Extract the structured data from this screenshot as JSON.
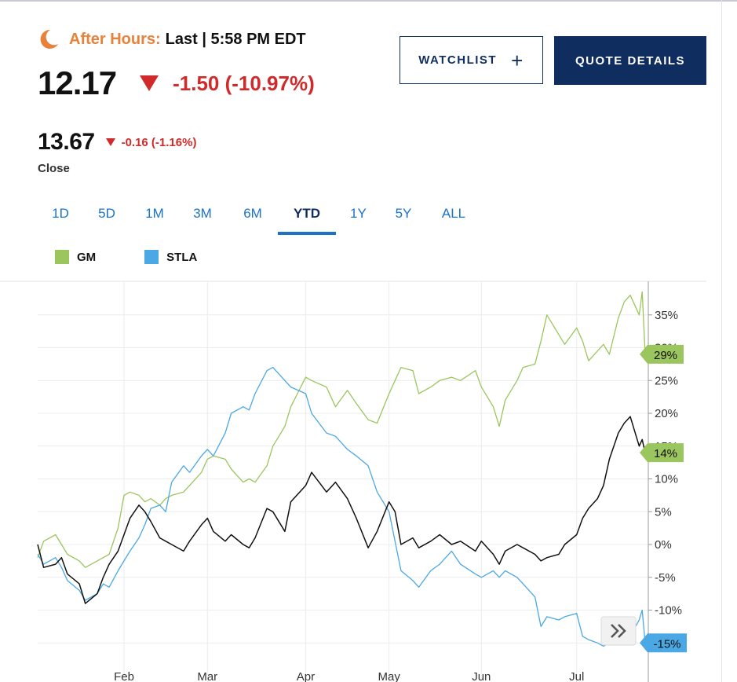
{
  "header": {
    "after_hours_label": "After Hours:",
    "after_hours_time": "Last | 5:58 PM EDT",
    "last_price": "12.17",
    "last_change": "-1.50 (-10.97%)",
    "close_price": "13.67",
    "close_change": "-0.16 (-1.16%)",
    "close_label": "Close"
  },
  "buttons": {
    "watchlist": "WATCHLIST",
    "quote_details": "QUOTE DETAILS",
    "scroll_icon": "double-chevron-right-icon"
  },
  "ranges": {
    "items": [
      "1D",
      "5D",
      "1M",
      "3M",
      "6M",
      "YTD",
      "1Y",
      "5Y",
      "ALL"
    ],
    "selected": "YTD"
  },
  "legend": {
    "items": [
      {
        "name": "GM",
        "color": "#9bc55d"
      },
      {
        "name": "STLA",
        "color": "#4aa8e4"
      }
    ]
  },
  "chart_data": {
    "type": "line",
    "x_tick_labels": [
      "Feb",
      "Mar",
      "Apr",
      "May",
      "Jun",
      "Jul"
    ],
    "y_tick_labels": [
      "-15%",
      "-10%",
      "-5%",
      "0%",
      "5%",
      "10%",
      "15%",
      "20%",
      "25%",
      "30%",
      "35%"
    ],
    "y_ticks": [
      -15,
      -10,
      -5,
      0,
      5,
      10,
      15,
      20,
      25,
      30,
      35
    ],
    "ylim": [
      -16,
      40
    ],
    "x_range": [
      "2023-01-03",
      "2023-07-21"
    ],
    "grid": true,
    "y_axis_side": "right",
    "series": [
      {
        "name": "GM",
        "color": "#9bc55d",
        "points": [
          [
            "2023-01-03",
            -2.0
          ],
          [
            "2023-01-05",
            0.5
          ],
          [
            "2023-01-09",
            1.5
          ],
          [
            "2023-01-11",
            0.0
          ],
          [
            "2023-01-13",
            -1.5
          ],
          [
            "2023-01-17",
            -2.5
          ],
          [
            "2023-01-19",
            -3.5
          ],
          [
            "2023-01-23",
            -2.5
          ],
          [
            "2023-01-25",
            -2.0
          ],
          [
            "2023-01-27",
            -1.5
          ],
          [
            "2023-01-30",
            2.5
          ],
          [
            "2023-02-01",
            7.5
          ],
          [
            "2023-02-03",
            8.0
          ],
          [
            "2023-02-06",
            7.5
          ],
          [
            "2023-02-08",
            6.5
          ],
          [
            "2023-02-10",
            7.0
          ],
          [
            "2023-02-13",
            6.0
          ],
          [
            "2023-02-15",
            7.0
          ],
          [
            "2023-02-17",
            7.5
          ],
          [
            "2023-02-21",
            8.0
          ],
          [
            "2023-02-23",
            9.0
          ],
          [
            "2023-02-27",
            11.0
          ],
          [
            "2023-03-01",
            13.0
          ],
          [
            "2023-03-03",
            13.5
          ],
          [
            "2023-03-07",
            13.0
          ],
          [
            "2023-03-09",
            11.5
          ],
          [
            "2023-03-13",
            9.5
          ],
          [
            "2023-03-15",
            10.0
          ],
          [
            "2023-03-17",
            9.5
          ],
          [
            "2023-03-21",
            12.0
          ],
          [
            "2023-03-23",
            15.0
          ],
          [
            "2023-03-27",
            18.0
          ],
          [
            "2023-03-29",
            21.0
          ],
          [
            "2023-04-03",
            25.5
          ],
          [
            "2023-04-05",
            25.0
          ],
          [
            "2023-04-10",
            24.0
          ],
          [
            "2023-04-13",
            21.0
          ],
          [
            "2023-04-17",
            23.5
          ],
          [
            "2023-04-20",
            21.5
          ],
          [
            "2023-04-24",
            19.0
          ],
          [
            "2023-04-27",
            18.5
          ],
          [
            "2023-05-01",
            23.0
          ],
          [
            "2023-05-03",
            25.0
          ],
          [
            "2023-05-05",
            27.0
          ],
          [
            "2023-05-09",
            26.5
          ],
          [
            "2023-05-11",
            23.0
          ],
          [
            "2023-05-15",
            24.0
          ],
          [
            "2023-05-18",
            25.0
          ],
          [
            "2023-05-22",
            25.5
          ],
          [
            "2023-05-25",
            25.0
          ],
          [
            "2023-05-30",
            26.5
          ],
          [
            "2023-06-01",
            24.0
          ],
          [
            "2023-06-05",
            21.0
          ],
          [
            "2023-06-07",
            18.0
          ],
          [
            "2023-06-09",
            22.0
          ],
          [
            "2023-06-13",
            25.0
          ],
          [
            "2023-06-15",
            27.0
          ],
          [
            "2023-06-19",
            27.5
          ],
          [
            "2023-06-21",
            31.0
          ],
          [
            "2023-06-23",
            35.0
          ],
          [
            "2023-06-27",
            32.0
          ],
          [
            "2023-06-29",
            30.5
          ],
          [
            "2023-07-03",
            33.0
          ],
          [
            "2023-07-05",
            31.0
          ],
          [
            "2023-07-07",
            28.0
          ],
          [
            "2023-07-10",
            29.5
          ],
          [
            "2023-07-12",
            30.5
          ],
          [
            "2023-07-14",
            29.0
          ],
          [
            "2023-07-17",
            34.5
          ],
          [
            "2023-07-19",
            37.0
          ],
          [
            "2023-07-21",
            38.0
          ],
          [
            "2023-07-24",
            35.0
          ],
          [
            "2023-07-25",
            38.5
          ],
          [
            "2023-07-26",
            29.0
          ]
        ]
      },
      {
        "name": "STLA",
        "color": "#4aa8e4",
        "points": [
          [
            "2023-01-03",
            -1.5
          ],
          [
            "2023-01-05",
            -3.0
          ],
          [
            "2023-01-09",
            -2.0
          ],
          [
            "2023-01-11",
            -3.5
          ],
          [
            "2023-01-13",
            -5.5
          ],
          [
            "2023-01-17",
            -7.0
          ],
          [
            "2023-01-19",
            -8.5
          ],
          [
            "2023-01-23",
            -7.5
          ],
          [
            "2023-01-25",
            -6.0
          ],
          [
            "2023-01-27",
            -6.5
          ],
          [
            "2023-01-30",
            -4.0
          ],
          [
            "2023-02-01",
            -2.5
          ],
          [
            "2023-02-03",
            -1.0
          ],
          [
            "2023-02-06",
            1.0
          ],
          [
            "2023-02-08",
            3.0
          ],
          [
            "2023-02-10",
            5.5
          ],
          [
            "2023-02-13",
            6.0
          ],
          [
            "2023-02-15",
            5.0
          ],
          [
            "2023-02-17",
            9.5
          ],
          [
            "2023-02-21",
            12.0
          ],
          [
            "2023-02-23",
            11.0
          ],
          [
            "2023-02-27",
            13.5
          ],
          [
            "2023-03-01",
            14.5
          ],
          [
            "2023-03-03",
            13.5
          ],
          [
            "2023-03-07",
            17.0
          ],
          [
            "2023-03-09",
            20.0
          ],
          [
            "2023-03-13",
            21.0
          ],
          [
            "2023-03-15",
            20.5
          ],
          [
            "2023-03-17",
            23.0
          ],
          [
            "2023-03-21",
            26.5
          ],
          [
            "2023-03-23",
            27.0
          ],
          [
            "2023-03-27",
            25.0
          ],
          [
            "2023-03-29",
            24.0
          ],
          [
            "2023-04-03",
            23.0
          ],
          [
            "2023-04-05",
            20.0
          ],
          [
            "2023-04-10",
            17.0
          ],
          [
            "2023-04-13",
            16.5
          ],
          [
            "2023-04-17",
            14.5
          ],
          [
            "2023-04-20",
            13.5
          ],
          [
            "2023-04-24",
            12.0
          ],
          [
            "2023-04-27",
            8.0
          ],
          [
            "2023-05-01",
            5.0
          ],
          [
            "2023-05-03",
            0.5
          ],
          [
            "2023-05-05",
            -4.0
          ],
          [
            "2023-05-09",
            -5.5
          ],
          [
            "2023-05-11",
            -6.5
          ],
          [
            "2023-05-15",
            -4.0
          ],
          [
            "2023-05-18",
            -3.0
          ],
          [
            "2023-05-22",
            -1.0
          ],
          [
            "2023-05-25",
            -3.0
          ],
          [
            "2023-05-30",
            -4.5
          ],
          [
            "2023-06-01",
            -5.0
          ],
          [
            "2023-06-05",
            -4.0
          ],
          [
            "2023-06-07",
            -5.0
          ],
          [
            "2023-06-09",
            -4.0
          ],
          [
            "2023-06-13",
            -5.0
          ],
          [
            "2023-06-15",
            -6.0
          ],
          [
            "2023-06-19",
            -8.0
          ],
          [
            "2023-06-21",
            -12.5
          ],
          [
            "2023-06-23",
            -11.0
          ],
          [
            "2023-06-27",
            -11.5
          ],
          [
            "2023-06-29",
            -11.0
          ],
          [
            "2023-07-03",
            -10.5
          ],
          [
            "2023-07-05",
            -14.0
          ],
          [
            "2023-07-07",
            -14.5
          ],
          [
            "2023-07-10",
            -15.0
          ],
          [
            "2023-07-12",
            -15.5
          ],
          [
            "2023-07-14",
            -15.0
          ],
          [
            "2023-07-17",
            -13.5
          ],
          [
            "2023-07-19",
            -12.0
          ],
          [
            "2023-07-21",
            -14.0
          ],
          [
            "2023-07-24",
            -11.5
          ],
          [
            "2023-07-25",
            -10.0
          ],
          [
            "2023-07-26",
            -15.0
          ]
        ]
      },
      {
        "name": "",
        "color": "#111111",
        "points": [
          [
            "2023-01-03",
            0.0
          ],
          [
            "2023-01-05",
            -3.5
          ],
          [
            "2023-01-09",
            -3.0
          ],
          [
            "2023-01-11",
            -2.0
          ],
          [
            "2023-01-13",
            -4.5
          ],
          [
            "2023-01-17",
            -6.0
          ],
          [
            "2023-01-19",
            -9.0
          ],
          [
            "2023-01-23",
            -7.5
          ],
          [
            "2023-01-25",
            -5.0
          ],
          [
            "2023-01-27",
            -3.0
          ],
          [
            "2023-01-30",
            -1.0
          ],
          [
            "2023-02-01",
            1.5
          ],
          [
            "2023-02-03",
            4.0
          ],
          [
            "2023-02-06",
            6.0
          ],
          [
            "2023-02-08",
            5.0
          ],
          [
            "2023-02-10",
            3.5
          ],
          [
            "2023-02-13",
            1.0
          ],
          [
            "2023-02-15",
            0.5
          ],
          [
            "2023-02-17",
            0.0
          ],
          [
            "2023-02-21",
            -1.0
          ],
          [
            "2023-02-23",
            0.5
          ],
          [
            "2023-02-27",
            3.0
          ],
          [
            "2023-03-01",
            4.0
          ],
          [
            "2023-03-03",
            2.0
          ],
          [
            "2023-03-07",
            0.5
          ],
          [
            "2023-03-09",
            1.5
          ],
          [
            "2023-03-13",
            0.0
          ],
          [
            "2023-03-15",
            -0.5
          ],
          [
            "2023-03-17",
            1.0
          ],
          [
            "2023-03-21",
            5.5
          ],
          [
            "2023-03-23",
            5.0
          ],
          [
            "2023-03-27",
            2.0
          ],
          [
            "2023-03-29",
            6.5
          ],
          [
            "2023-04-03",
            9.0
          ],
          [
            "2023-04-05",
            11.0
          ],
          [
            "2023-04-10",
            8.0
          ],
          [
            "2023-04-13",
            9.5
          ],
          [
            "2023-04-17",
            7.0
          ],
          [
            "2023-04-20",
            4.0
          ],
          [
            "2023-04-24",
            -0.5
          ],
          [
            "2023-04-27",
            2.0
          ],
          [
            "2023-05-01",
            6.5
          ],
          [
            "2023-05-03",
            5.0
          ],
          [
            "2023-05-05",
            0.0
          ],
          [
            "2023-05-09",
            1.0
          ],
          [
            "2023-05-11",
            -0.5
          ],
          [
            "2023-05-15",
            0.5
          ],
          [
            "2023-05-18",
            1.5
          ],
          [
            "2023-05-22",
            0.0
          ],
          [
            "2023-05-25",
            0.5
          ],
          [
            "2023-05-30",
            -1.0
          ],
          [
            "2023-06-01",
            0.5
          ],
          [
            "2023-06-05",
            -1.5
          ],
          [
            "2023-06-07",
            -3.0
          ],
          [
            "2023-06-09",
            -1.0
          ],
          [
            "2023-06-13",
            0.0
          ],
          [
            "2023-06-15",
            -0.5
          ],
          [
            "2023-06-19",
            -1.5
          ],
          [
            "2023-06-21",
            -2.5
          ],
          [
            "2023-06-23",
            -2.0
          ],
          [
            "2023-06-27",
            -1.5
          ],
          [
            "2023-06-29",
            0.0
          ],
          [
            "2023-07-03",
            1.5
          ],
          [
            "2023-07-05",
            4.0
          ],
          [
            "2023-07-07",
            5.5
          ],
          [
            "2023-07-10",
            7.0
          ],
          [
            "2023-07-12",
            9.0
          ],
          [
            "2023-07-14",
            13.0
          ],
          [
            "2023-07-17",
            17.0
          ],
          [
            "2023-07-19",
            18.5
          ],
          [
            "2023-07-21",
            19.5
          ],
          [
            "2023-07-24",
            15.0
          ],
          [
            "2023-07-25",
            16.0
          ],
          [
            "2023-07-26",
            14.0
          ]
        ]
      }
    ],
    "end_labels": [
      {
        "text": "29%",
        "value": 29,
        "color": "#9bc55d"
      },
      {
        "text": "14%",
        "value": 14,
        "color": "#9bc55d"
      },
      {
        "text": "-15%",
        "value": -15,
        "color": "#4aa8e4"
      }
    ]
  }
}
